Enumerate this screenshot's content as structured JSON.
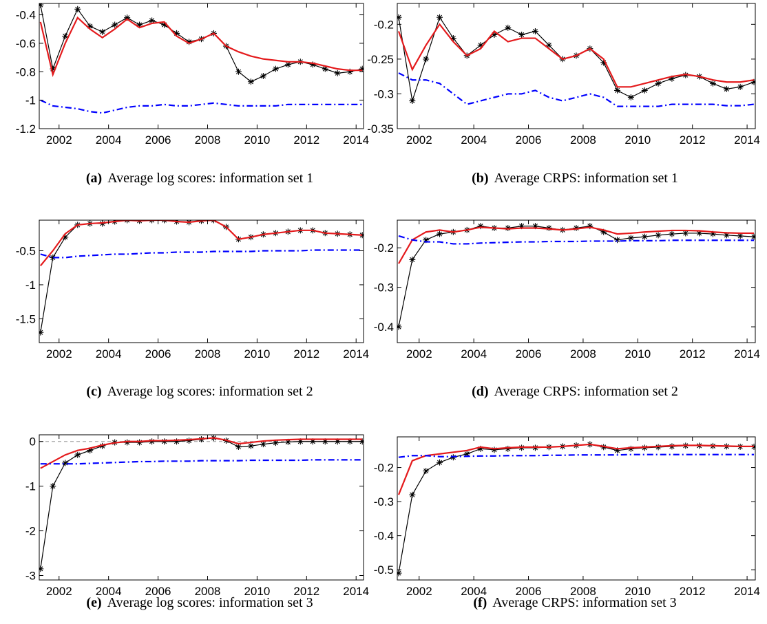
{
  "chart_data": [
    {
      "type": "line",
      "caption_label": "(a)",
      "caption": "Average log scores: information set 1",
      "x": [
        2001.25,
        2001.75,
        2002.25,
        2002.75,
        2003.25,
        2003.75,
        2004.25,
        2004.75,
        2005.25,
        2005.75,
        2006.25,
        2006.75,
        2007.25,
        2007.75,
        2008.25,
        2008.75,
        2009.25,
        2009.75,
        2010.25,
        2010.75,
        2011.25,
        2011.75,
        2012.25,
        2012.75,
        2013.25,
        2013.75,
        2014.25
      ],
      "xlim": [
        2001.2,
        2014.3
      ],
      "xticks": [
        2002,
        2004,
        2006,
        2008,
        2010,
        2012,
        2014
      ],
      "ylim": [
        -1.2,
        -0.32
      ],
      "yticks": [
        -1.2,
        -1,
        -0.8,
        -0.6,
        -0.4
      ],
      "grid": false,
      "series": [
        {
          "color": "#000000",
          "linestyle": "solid",
          "marker": "asterisk",
          "values": [
            -0.33,
            -0.78,
            -0.55,
            -0.36,
            -0.48,
            -0.52,
            -0.47,
            -0.42,
            -0.47,
            -0.44,
            -0.47,
            -0.53,
            -0.59,
            -0.57,
            -0.53,
            -0.62,
            -0.8,
            -0.87,
            -0.83,
            -0.78,
            -0.75,
            -0.73,
            -0.75,
            -0.78,
            -0.81,
            -0.8,
            -0.78
          ]
        },
        {
          "color": "#e41a1c",
          "linestyle": "solid",
          "values": [
            -0.45,
            -0.82,
            -0.6,
            -0.42,
            -0.5,
            -0.56,
            -0.5,
            -0.43,
            -0.49,
            -0.46,
            -0.45,
            -0.55,
            -0.6,
            -0.57,
            -0.53,
            -0.62,
            -0.66,
            -0.69,
            -0.71,
            -0.72,
            -0.73,
            -0.73,
            -0.74,
            -0.76,
            -0.78,
            -0.79,
            -0.79
          ]
        },
        {
          "color": "#0000ff",
          "linestyle": "dashdot",
          "values": [
            -1.0,
            -1.04,
            -1.05,
            -1.06,
            -1.08,
            -1.09,
            -1.07,
            -1.05,
            -1.04,
            -1.04,
            -1.03,
            -1.04,
            -1.04,
            -1.03,
            -1.02,
            -1.03,
            -1.04,
            -1.04,
            -1.04,
            -1.04,
            -1.03,
            -1.03,
            -1.03,
            -1.03,
            -1.03,
            -1.03,
            -1.03
          ]
        }
      ]
    },
    {
      "type": "line",
      "caption_label": "(b)",
      "caption": "Average CRPS: information set 1",
      "x": [
        2001.25,
        2001.75,
        2002.25,
        2002.75,
        2003.25,
        2003.75,
        2004.25,
        2004.75,
        2005.25,
        2005.75,
        2006.25,
        2006.75,
        2007.25,
        2007.75,
        2008.25,
        2008.75,
        2009.25,
        2009.75,
        2010.25,
        2010.75,
        2011.25,
        2011.75,
        2012.25,
        2012.75,
        2013.25,
        2013.75,
        2014.25
      ],
      "xlim": [
        2001.2,
        2014.3
      ],
      "xticks": [
        2002,
        2004,
        2006,
        2008,
        2010,
        2012,
        2014
      ],
      "ylim": [
        -0.35,
        -0.17
      ],
      "yticks": [
        -0.35,
        -0.3,
        -0.25,
        -0.2
      ],
      "grid": false,
      "series": [
        {
          "color": "#000000",
          "linestyle": "solid",
          "marker": "asterisk",
          "values": [
            -0.19,
            -0.31,
            -0.25,
            -0.19,
            -0.22,
            -0.245,
            -0.23,
            -0.215,
            -0.205,
            -0.215,
            -0.21,
            -0.23,
            -0.25,
            -0.245,
            -0.235,
            -0.255,
            -0.295,
            -0.305,
            -0.295,
            -0.285,
            -0.278,
            -0.273,
            -0.275,
            -0.285,
            -0.293,
            -0.29,
            -0.283
          ]
        },
        {
          "color": "#e41a1c",
          "linestyle": "solid",
          "values": [
            -0.21,
            -0.265,
            -0.23,
            -0.2,
            -0.225,
            -0.245,
            -0.235,
            -0.21,
            -0.225,
            -0.22,
            -0.22,
            -0.235,
            -0.25,
            -0.245,
            -0.235,
            -0.25,
            -0.29,
            -0.29,
            -0.285,
            -0.28,
            -0.275,
            -0.272,
            -0.275,
            -0.28,
            -0.283,
            -0.283,
            -0.28
          ]
        },
        {
          "color": "#0000ff",
          "linestyle": "dashdot",
          "values": [
            -0.27,
            -0.28,
            -0.28,
            -0.285,
            -0.3,
            -0.315,
            -0.31,
            -0.305,
            -0.3,
            -0.3,
            -0.295,
            -0.305,
            -0.31,
            -0.305,
            -0.3,
            -0.305,
            -0.318,
            -0.318,
            -0.318,
            -0.318,
            -0.315,
            -0.315,
            -0.315,
            -0.315,
            -0.317,
            -0.317,
            -0.315
          ]
        }
      ]
    },
    {
      "type": "line",
      "caption_label": "(c)",
      "caption": "Average log scores: information set 2",
      "x": [
        2001.25,
        2001.75,
        2002.25,
        2002.75,
        2003.25,
        2003.75,
        2004.25,
        2004.75,
        2005.25,
        2005.75,
        2006.25,
        2006.75,
        2007.25,
        2007.75,
        2008.25,
        2008.75,
        2009.25,
        2009.75,
        2010.25,
        2010.75,
        2011.25,
        2011.75,
        2012.25,
        2012.75,
        2013.25,
        2013.75,
        2014.25
      ],
      "xlim": [
        2001.2,
        2014.3
      ],
      "xticks": [
        2002,
        2004,
        2006,
        2008,
        2010,
        2012,
        2014
      ],
      "ylim": [
        -1.85,
        -0.05
      ],
      "yticks": [
        -1.5,
        -1,
        -0.5
      ],
      "grid": false,
      "series": [
        {
          "color": "#000000",
          "linestyle": "solid",
          "marker": "asterisk",
          "values": [
            -1.7,
            -0.6,
            -0.3,
            -0.12,
            -0.1,
            -0.1,
            -0.07,
            -0.05,
            -0.06,
            -0.05,
            -0.05,
            -0.07,
            -0.08,
            -0.06,
            -0.05,
            -0.15,
            -0.33,
            -0.3,
            -0.26,
            -0.24,
            -0.22,
            -0.2,
            -0.2,
            -0.24,
            -0.25,
            -0.26,
            -0.27
          ]
        },
        {
          "color": "#e41a1c",
          "linestyle": "solid",
          "values": [
            -0.72,
            -0.5,
            -0.25,
            -0.12,
            -0.1,
            -0.09,
            -0.07,
            -0.05,
            -0.06,
            -0.05,
            -0.05,
            -0.07,
            -0.08,
            -0.06,
            -0.05,
            -0.15,
            -0.33,
            -0.3,
            -0.26,
            -0.24,
            -0.22,
            -0.2,
            -0.2,
            -0.24,
            -0.25,
            -0.26,
            -0.27
          ]
        },
        {
          "color": "#0000ff",
          "linestyle": "dashdot",
          "values": [
            -0.55,
            -0.6,
            -0.6,
            -0.58,
            -0.57,
            -0.56,
            -0.55,
            -0.55,
            -0.54,
            -0.53,
            -0.53,
            -0.52,
            -0.52,
            -0.52,
            -0.51,
            -0.51,
            -0.51,
            -0.51,
            -0.5,
            -0.5,
            -0.5,
            -0.5,
            -0.49,
            -0.49,
            -0.49,
            -0.49,
            -0.49
          ]
        }
      ]
    },
    {
      "type": "line",
      "caption_label": "(d)",
      "caption": "Average CRPS: information set 2",
      "x": [
        2001.25,
        2001.75,
        2002.25,
        2002.75,
        2003.25,
        2003.75,
        2004.25,
        2004.75,
        2005.25,
        2005.75,
        2006.25,
        2006.75,
        2007.25,
        2007.75,
        2008.25,
        2008.75,
        2009.25,
        2009.75,
        2010.25,
        2010.75,
        2011.25,
        2011.75,
        2012.25,
        2012.75,
        2013.25,
        2013.75,
        2014.25
      ],
      "xlim": [
        2001.2,
        2014.3
      ],
      "xticks": [
        2002,
        2004,
        2006,
        2008,
        2010,
        2012,
        2014
      ],
      "ylim": [
        -0.44,
        -0.13
      ],
      "yticks": [
        -0.4,
        -0.3,
        -0.2
      ],
      "grid": false,
      "series": [
        {
          "color": "#000000",
          "linestyle": "solid",
          "marker": "asterisk",
          "values": [
            -0.4,
            -0.23,
            -0.18,
            -0.165,
            -0.16,
            -0.155,
            -0.145,
            -0.15,
            -0.15,
            -0.145,
            -0.145,
            -0.15,
            -0.155,
            -0.15,
            -0.145,
            -0.16,
            -0.18,
            -0.175,
            -0.172,
            -0.168,
            -0.165,
            -0.163,
            -0.163,
            -0.165,
            -0.168,
            -0.17,
            -0.172
          ]
        },
        {
          "color": "#e41a1c",
          "linestyle": "solid",
          "values": [
            -0.24,
            -0.18,
            -0.16,
            -0.155,
            -0.16,
            -0.155,
            -0.148,
            -0.15,
            -0.152,
            -0.15,
            -0.15,
            -0.152,
            -0.155,
            -0.152,
            -0.148,
            -0.155,
            -0.165,
            -0.163,
            -0.16,
            -0.158,
            -0.156,
            -0.156,
            -0.157,
            -0.16,
            -0.162,
            -0.163,
            -0.163
          ]
        },
        {
          "color": "#0000ff",
          "linestyle": "dashdot",
          "values": [
            -0.17,
            -0.18,
            -0.185,
            -0.185,
            -0.19,
            -0.19,
            -0.188,
            -0.187,
            -0.186,
            -0.185,
            -0.185,
            -0.184,
            -0.184,
            -0.184,
            -0.183,
            -0.183,
            -0.183,
            -0.182,
            -0.182,
            -0.182,
            -0.181,
            -0.181,
            -0.181,
            -0.181,
            -0.181,
            -0.181,
            -0.181
          ]
        }
      ]
    },
    {
      "type": "line",
      "caption_label": "(e)",
      "caption": "Average log scores: information set 3",
      "x": [
        2001.25,
        2001.75,
        2002.25,
        2002.75,
        2003.25,
        2003.75,
        2004.25,
        2004.75,
        2005.25,
        2005.75,
        2006.25,
        2006.75,
        2007.25,
        2007.75,
        2008.25,
        2008.75,
        2009.25,
        2009.75,
        2010.25,
        2010.75,
        2011.25,
        2011.75,
        2012.25,
        2012.75,
        2013.25,
        2013.75,
        2014.25
      ],
      "xlim": [
        2001.2,
        2014.3
      ],
      "xticks": [
        2002,
        2004,
        2006,
        2008,
        2010,
        2012,
        2014
      ],
      "ylim": [
        -3.1,
        0.15
      ],
      "yticks": [
        -3,
        -2,
        -1,
        0
      ],
      "grid": false,
      "reference_line": 0,
      "series": [
        {
          "color": "#000000",
          "linestyle": "solid",
          "marker": "asterisk",
          "values": [
            -2.85,
            -1.0,
            -0.48,
            -0.3,
            -0.2,
            -0.1,
            -0.02,
            -0.02,
            -0.02,
            0,
            0,
            0,
            0.02,
            0.05,
            0.08,
            0.02,
            -0.12,
            -0.1,
            -0.06,
            -0.03,
            -0.01,
            0,
            0,
            0,
            0,
            0,
            0
          ]
        },
        {
          "color": "#e41a1c",
          "linestyle": "solid",
          "values": [
            -0.6,
            -0.45,
            -0.3,
            -0.2,
            -0.15,
            -0.08,
            -0.03,
            0,
            0,
            0.02,
            0.02,
            0.03,
            0.04,
            0.06,
            0.08,
            0.03,
            -0.05,
            -0.02,
            0.01,
            0.03,
            0.04,
            0.05,
            0.05,
            0.05,
            0.05,
            0.05,
            0.05
          ]
        },
        {
          "color": "#0000ff",
          "linestyle": "dashdot",
          "values": [
            -0.5,
            -0.5,
            -0.5,
            -0.5,
            -0.49,
            -0.48,
            -0.47,
            -0.46,
            -0.45,
            -0.45,
            -0.44,
            -0.44,
            -0.44,
            -0.43,
            -0.43,
            -0.43,
            -0.43,
            -0.42,
            -0.42,
            -0.42,
            -0.42,
            -0.42,
            -0.41,
            -0.41,
            -0.41,
            -0.41,
            -0.41
          ]
        }
      ]
    },
    {
      "type": "line",
      "caption_label": "(f)",
      "caption": "Average CRPS: information set 3",
      "x": [
        2001.25,
        2001.75,
        2002.25,
        2002.75,
        2003.25,
        2003.75,
        2004.25,
        2004.75,
        2005.25,
        2005.75,
        2006.25,
        2006.75,
        2007.25,
        2007.75,
        2008.25,
        2008.75,
        2009.25,
        2009.75,
        2010.25,
        2010.75,
        2011.25,
        2011.75,
        2012.25,
        2012.75,
        2013.25,
        2013.75,
        2014.25
      ],
      "xlim": [
        2001.2,
        2014.3
      ],
      "xticks": [
        2002,
        2004,
        2006,
        2008,
        2010,
        2012,
        2014
      ],
      "ylim": [
        -0.53,
        -0.11
      ],
      "yticks": [
        -0.5,
        -0.4,
        -0.3,
        -0.2
      ],
      "grid": false,
      "series": [
        {
          "color": "#000000",
          "linestyle": "solid",
          "marker": "asterisk",
          "values": [
            -0.51,
            -0.28,
            -0.21,
            -0.185,
            -0.17,
            -0.16,
            -0.145,
            -0.148,
            -0.145,
            -0.142,
            -0.142,
            -0.14,
            -0.138,
            -0.135,
            -0.132,
            -0.14,
            -0.15,
            -0.145,
            -0.142,
            -0.14,
            -0.138,
            -0.136,
            -0.136,
            -0.137,
            -0.138,
            -0.139,
            -0.139
          ]
        },
        {
          "color": "#e41a1c",
          "linestyle": "solid",
          "values": [
            -0.28,
            -0.18,
            -0.165,
            -0.16,
            -0.155,
            -0.15,
            -0.14,
            -0.145,
            -0.142,
            -0.14,
            -0.14,
            -0.14,
            -0.138,
            -0.135,
            -0.132,
            -0.138,
            -0.145,
            -0.142,
            -0.14,
            -0.138,
            -0.136,
            -0.135,
            -0.135,
            -0.136,
            -0.137,
            -0.138,
            -0.138
          ]
        },
        {
          "color": "#0000ff",
          "linestyle": "dashdot",
          "values": [
            -0.17,
            -0.165,
            -0.165,
            -0.168,
            -0.168,
            -0.167,
            -0.166,
            -0.166,
            -0.165,
            -0.165,
            -0.165,
            -0.164,
            -0.164,
            -0.163,
            -0.163,
            -0.163,
            -0.163,
            -0.162,
            -0.162,
            -0.162,
            -0.162,
            -0.162,
            -0.162,
            -0.162,
            -0.162,
            -0.162,
            -0.162
          ]
        }
      ]
    }
  ]
}
